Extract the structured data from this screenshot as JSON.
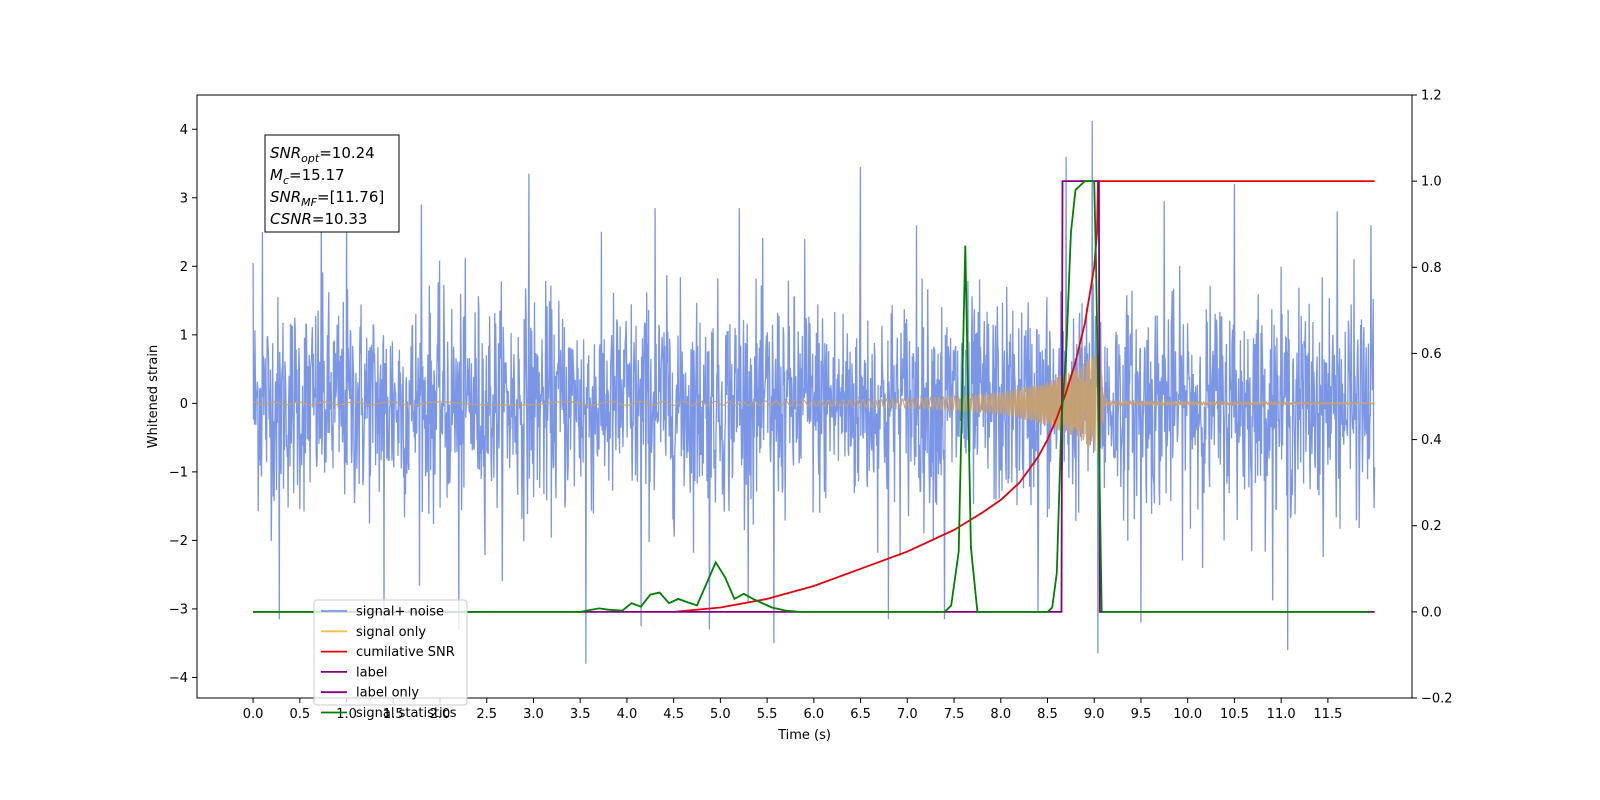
{
  "chart_data": {
    "type": "line",
    "xlabel": "Time (s)",
    "ylabel": "Whitened strain",
    "xlim": [
      -0.6,
      12.4
    ],
    "ylim": [
      -4.3,
      4.5
    ],
    "y2lim": [
      -0.2,
      1.2
    ],
    "x_ticks": [
      "0.0",
      "0.5",
      "1.0",
      "1.5",
      "2.0",
      "2.5",
      "3.0",
      "3.5",
      "4.0",
      "4.5",
      "5.0",
      "5.5",
      "6.0",
      "6.5",
      "7.0",
      "7.5",
      "8.0",
      "8.5",
      "9.0",
      "9.5",
      "10.0",
      "10.5",
      "11.0",
      "11.5"
    ],
    "x_tick_values": [
      0.0,
      0.5,
      1.0,
      1.5,
      2.0,
      2.5,
      3.0,
      3.5,
      4.0,
      4.5,
      5.0,
      5.5,
      6.0,
      6.5,
      7.0,
      7.5,
      8.0,
      8.5,
      9.0,
      9.5,
      10.0,
      10.5,
      11.0,
      11.5
    ],
    "y_ticks": [
      "−4",
      "−3",
      "−2",
      "−1",
      "0",
      "1",
      "2",
      "3",
      "4"
    ],
    "y_tick_values": [
      -4,
      -3,
      -2,
      -1,
      0,
      1,
      2,
      3,
      4
    ],
    "y2_ticks": [
      "−0.2",
      "0.0",
      "0.2",
      "0.4",
      "0.6",
      "0.8",
      "1.0",
      "1.2"
    ],
    "y2_tick_values": [
      -0.2,
      0.0,
      0.2,
      0.4,
      0.6,
      0.8,
      1.0,
      1.2
    ],
    "legend_placement": "lower-left",
    "grid": false,
    "annotation": {
      "lines": [
        {
          "base": "SNR",
          "sub": "opt",
          "rest": "=10.24"
        },
        {
          "base": "M",
          "sub": "c",
          "rest": "=15.17"
        },
        {
          "base": "SNR",
          "sub": "MF",
          "rest": "=[11.76]"
        },
        {
          "base": "CSNR",
          "sub": "",
          "rest": "=10.33"
        }
      ]
    },
    "series": [
      {
        "name": "signal+ noise",
        "axis": "left",
        "color": "#7b96e6",
        "kind": "noise",
        "x_range": [
          0.0,
          12.0
        ],
        "sigma": 0.9,
        "peak_values": [
          {
            "x": 0.0,
            "y": 2.05
          },
          {
            "x": 0.1,
            "y": 2.5
          },
          {
            "x": 0.28,
            "y": -3.15
          },
          {
            "x": 0.73,
            "y": 2.75
          },
          {
            "x": 1.0,
            "y": 3.1
          },
          {
            "x": 1.4,
            "y": -3.2
          },
          {
            "x": 1.8,
            "y": 2.9
          },
          {
            "x": 2.2,
            "y": -3.3
          },
          {
            "x": 2.95,
            "y": 3.35
          },
          {
            "x": 3.56,
            "y": -3.8
          },
          {
            "x": 4.15,
            "y": -3.25
          },
          {
            "x": 4.3,
            "y": 2.85
          },
          {
            "x": 4.88,
            "y": -3.3
          },
          {
            "x": 5.2,
            "y": 2.85
          },
          {
            "x": 5.57,
            "y": -3.5
          },
          {
            "x": 5.9,
            "y": 2.4
          },
          {
            "x": 6.5,
            "y": 3.45
          },
          {
            "x": 6.8,
            "y": -3.15
          },
          {
            "x": 7.1,
            "y": 2.6
          },
          {
            "x": 7.4,
            "y": -3.15
          },
          {
            "x": 8.4,
            "y": -3.05
          },
          {
            "x": 8.7,
            "y": 3.6
          },
          {
            "x": 8.98,
            "y": 4.12
          },
          {
            "x": 9.04,
            "y": -3.65
          },
          {
            "x": 9.5,
            "y": -3.2
          },
          {
            "x": 9.75,
            "y": 2.95
          },
          {
            "x": 10.5,
            "y": 3.2
          },
          {
            "x": 11.07,
            "y": -3.6
          },
          {
            "x": 11.6,
            "y": 2.8
          },
          {
            "x": 11.96,
            "y": 2.6
          }
        ]
      },
      {
        "name": "signal only",
        "axis": "left",
        "color": "#f5c040",
        "kind": "chirp",
        "x_range": [
          0.0,
          12.0
        ],
        "merger_time": 9.05,
        "envelope": [
          {
            "x": 0.0,
            "y": 0.02
          },
          {
            "x": 5.0,
            "y": 0.03
          },
          {
            "x": 6.0,
            "y": 0.04
          },
          {
            "x": 7.0,
            "y": 0.07
          },
          {
            "x": 7.5,
            "y": 0.1
          },
          {
            "x": 8.0,
            "y": 0.16
          },
          {
            "x": 8.5,
            "y": 0.32
          },
          {
            "x": 8.8,
            "y": 0.5
          },
          {
            "x": 9.0,
            "y": 0.7
          },
          {
            "x": 9.05,
            "y": 0.75
          },
          {
            "x": 9.12,
            "y": 0.03
          },
          {
            "x": 12.0,
            "y": 0.01
          }
        ]
      },
      {
        "name": "cumilative SNR",
        "axis": "right",
        "color": "#e8000b",
        "kind": "line",
        "x": [
          4.5,
          5.0,
          5.5,
          6.0,
          6.5,
          7.0,
          7.5,
          7.8,
          8.0,
          8.2,
          8.4,
          8.5,
          8.6,
          8.7,
          8.8,
          8.9,
          9.0,
          9.03,
          9.04,
          9.1,
          12.0
        ],
        "values": [
          0.0,
          0.01,
          0.03,
          0.06,
          0.1,
          0.14,
          0.19,
          0.23,
          0.26,
          0.3,
          0.36,
          0.4,
          0.45,
          0.51,
          0.58,
          0.67,
          0.8,
          0.88,
          1.0,
          1.0,
          1.0
        ]
      },
      {
        "name": "label",
        "axis": "right",
        "color": "#800080",
        "kind": "step",
        "x": [
          0.0,
          8.65,
          8.66,
          9.05,
          9.06,
          12.0
        ],
        "values": [
          0.0,
          0.0,
          1.0,
          1.0,
          0.0,
          0.0
        ]
      },
      {
        "name": "label only",
        "axis": "right",
        "color": "#800080",
        "kind": "hidden",
        "x": [],
        "values": []
      },
      {
        "name": "signal statistics",
        "axis": "right",
        "color": "#008000",
        "kind": "line",
        "x": [
          0.0,
          3.0,
          3.5,
          3.7,
          3.8,
          3.95,
          4.05,
          4.15,
          4.25,
          4.35,
          4.45,
          4.55,
          4.65,
          4.75,
          4.85,
          4.95,
          5.05,
          5.15,
          5.25,
          5.35,
          5.45,
          5.55,
          5.7,
          5.85,
          6.0,
          7.4,
          7.47,
          7.55,
          7.62,
          7.68,
          7.75,
          8.5,
          8.55,
          8.6,
          8.65,
          8.7,
          8.75,
          8.8,
          8.9,
          9.0,
          9.02,
          9.08,
          9.1,
          11.95
        ],
        "values": [
          0.0,
          0.0,
          0.0,
          0.008,
          0.005,
          0.003,
          0.02,
          0.012,
          0.04,
          0.045,
          0.02,
          0.03,
          0.022,
          0.015,
          0.065,
          0.115,
          0.08,
          0.03,
          0.042,
          0.03,
          0.02,
          0.01,
          0.003,
          0.0,
          0.0,
          0.0,
          0.015,
          0.14,
          0.85,
          0.15,
          0.0,
          0.0,
          0.01,
          0.09,
          0.45,
          0.6,
          0.88,
          0.98,
          1.0,
          1.0,
          0.8,
          0.0,
          0.0,
          0.0
        ]
      }
    ]
  }
}
